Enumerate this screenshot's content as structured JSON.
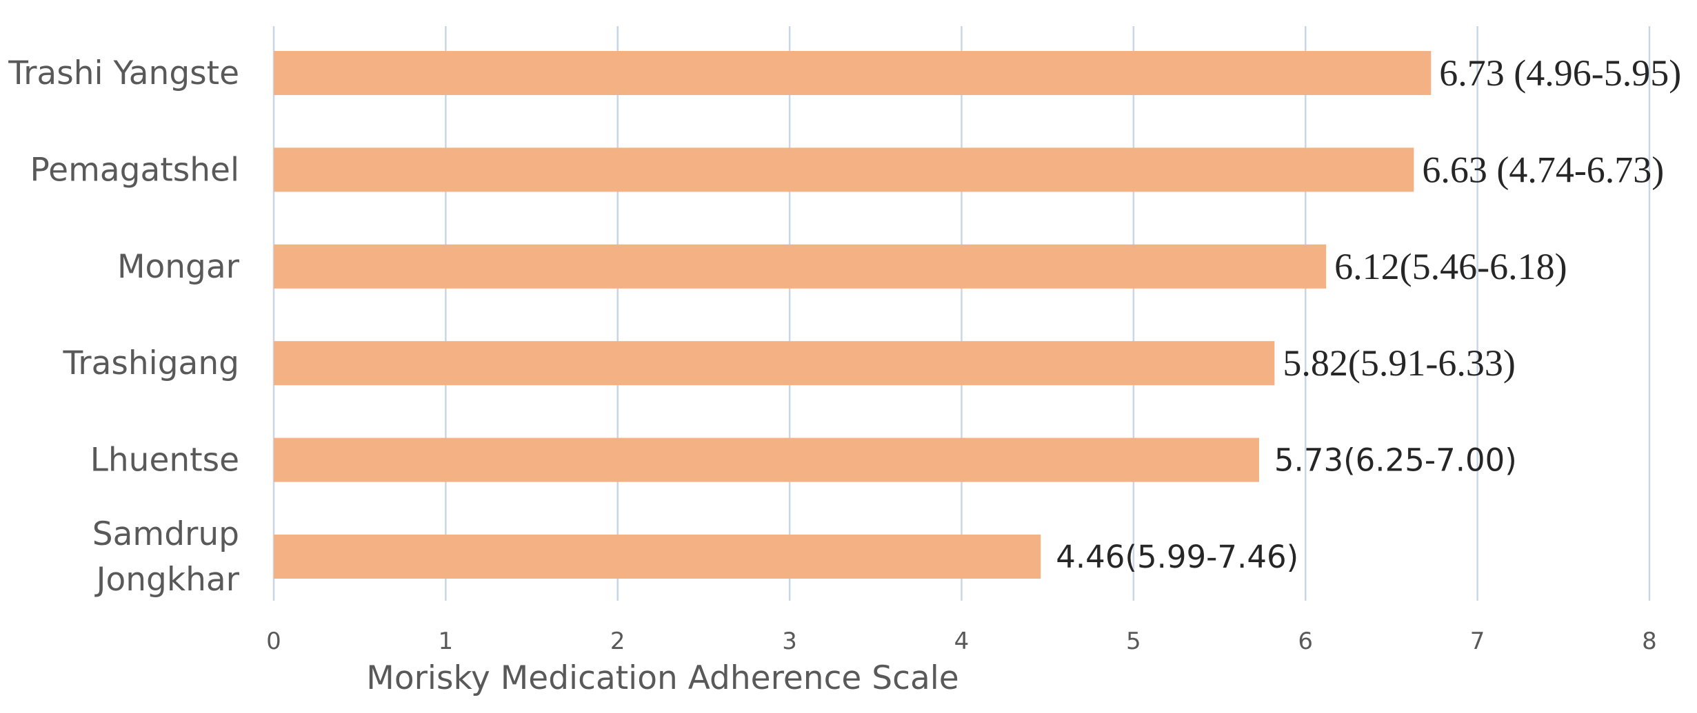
{
  "chart_data": {
    "type": "bar",
    "orientation": "horizontal",
    "title": "",
    "xlabel": "Morisky Medication Adherence Scale",
    "ylabel": "",
    "xlim": [
      0,
      8
    ],
    "x_ticks": [
      "0",
      "1",
      "2",
      "3",
      "4",
      "5",
      "6",
      "7",
      "8"
    ],
    "grid": "vertical",
    "legend": "none",
    "bar_color": "#F4B183",
    "grid_color": "#C9D6E8",
    "categories": [
      [
        "Trashi Yangste"
      ],
      [
        "Pemagatshel"
      ],
      [
        "Mongar"
      ],
      [
        "Trashigang"
      ],
      [
        "Lhuentse"
      ],
      [
        "Samdrup",
        "Jongkhar"
      ]
    ],
    "values": [
      6.73,
      6.63,
      6.12,
      5.82,
      5.73,
      4.46
    ],
    "data_labels": [
      "6.73 (4.96-5.95)",
      "6.63 (4.74-6.73)",
      "6.12(5.46-6.18)",
      "5.82(5.91-6.33)",
      "5.73(6.25-7.00)",
      "4.46(5.99-7.46)"
    ],
    "data_label_styles": [
      "serif",
      "serif",
      "serif",
      "serif",
      "sans",
      "sans"
    ]
  }
}
